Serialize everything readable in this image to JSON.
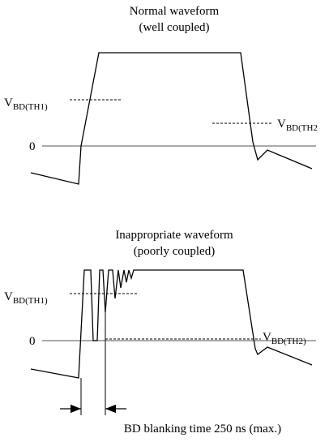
{
  "top": {
    "title": "Normal waveform",
    "subtitle": "(well coupled)",
    "th1": {
      "main": "V",
      "sub": "BD(TH1)"
    },
    "th2": {
      "main": "V",
      "sub": "BD(TH2"
    },
    "zero": "0"
  },
  "bottom": {
    "title": "Inappropriate waveform",
    "subtitle": "(poorly coupled)",
    "th1": {
      "main": "V",
      "sub": "BD(TH1)"
    },
    "th2": {
      "main": "V",
      "sub": "BD(TH2)"
    },
    "zero": "0"
  },
  "caption": "BD blanking time 250 ns (max.)"
}
